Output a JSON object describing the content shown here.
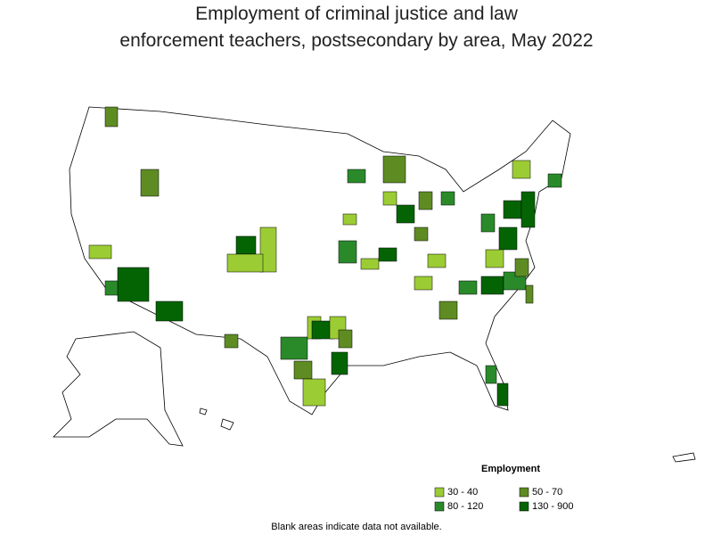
{
  "title": [
    "Employment of criminal justice and law",
    "enforcement teachers, postsecondary by area, May 2022"
  ],
  "legend": {
    "title": "Employment",
    "items": [
      {
        "label": "30 - 40",
        "color": "#9ccc34"
      },
      {
        "label": "50 - 70",
        "color": "#5e8c23"
      },
      {
        "label": "80 - 120",
        "color": "#2a8a2a"
      },
      {
        "label": "130 - 900",
        "color": "#046404"
      }
    ]
  },
  "note": "Blank areas indicate data not available."
}
